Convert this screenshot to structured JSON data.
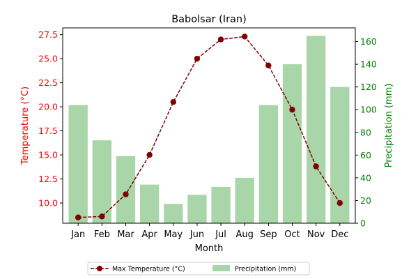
{
  "chart_data": {
    "type": "bar+line",
    "title": "Babolsar (Iran)",
    "xlabel": "Month",
    "categories": [
      "Jan",
      "Feb",
      "Mar",
      "Apr",
      "May",
      "Jun",
      "Jul",
      "Aug",
      "Sep",
      "Oct",
      "Nov",
      "Dec"
    ],
    "left_axis": {
      "label": "Temperature (°C)",
      "color": "#ff0000",
      "ylim": [
        7.9,
        28.2
      ],
      "ticks": [
        "10.0",
        "12.5",
        "15.0",
        "17.5",
        "20.0",
        "22.5",
        "25.0",
        "27.5"
      ]
    },
    "right_axis": {
      "label": "Precipitation (mm)",
      "color": "#008000",
      "ylim": [
        0,
        172
      ],
      "ticks": [
        "0",
        "20",
        "40",
        "60",
        "80",
        "100",
        "120",
        "140",
        "160"
      ]
    },
    "series": [
      {
        "name": "Max Temperature (°C)",
        "kind": "line",
        "axis": "left",
        "color": "#800000",
        "values": [
          8.5,
          8.6,
          10.9,
          15.0,
          20.5,
          25.0,
          27.0,
          27.3,
          24.3,
          19.7,
          13.8,
          10.0
        ]
      },
      {
        "name": "Precipitation (mm)",
        "kind": "bar",
        "axis": "right",
        "color": "#a9d6a9",
        "values": [
          104,
          73,
          59,
          34,
          17,
          25,
          32,
          40,
          104,
          140,
          165,
          120
        ]
      }
    ],
    "legend": {
      "placement": "bottom-center",
      "columns": 2
    }
  }
}
